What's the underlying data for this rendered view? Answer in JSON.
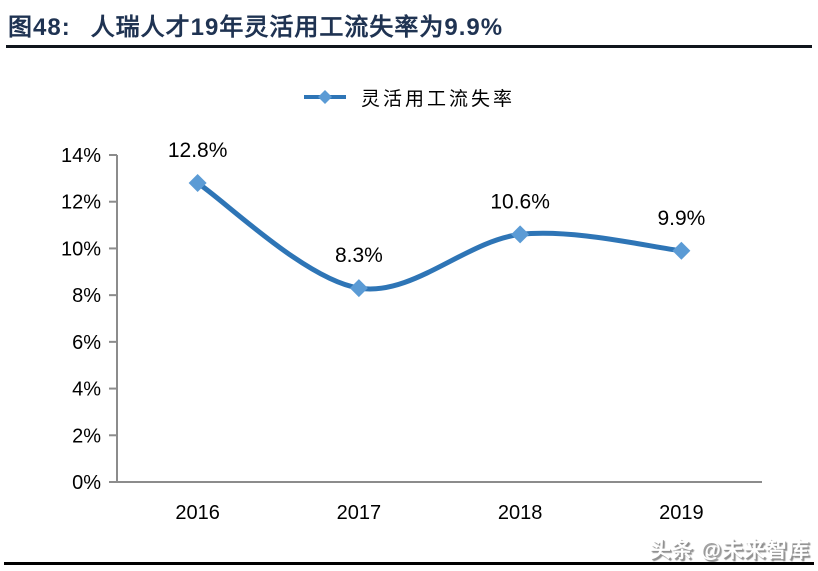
{
  "title": {
    "figure_label": "图48:",
    "text": "人瑞人才19年灵活用工流失率为9.9%"
  },
  "legend": {
    "label": "灵活用工流失率"
  },
  "watermark": {
    "text": "头条 @未来智库"
  },
  "colors": {
    "title": "#1F3352",
    "title_rule": "#10151c",
    "line": "#2E75B6",
    "marker": "#5B9BD5",
    "axis": "#8C8C8C",
    "text": "#000000"
  },
  "chart_data": {
    "type": "line",
    "title": "人瑞人才19年灵活用工流失率为9.9%",
    "categories": [
      "2016",
      "2017",
      "2018",
      "2019"
    ],
    "series": [
      {
        "name": "灵活用工流失率",
        "values": [
          12.8,
          8.3,
          10.6,
          9.9
        ]
      }
    ],
    "data_labels": [
      "12.8%",
      "8.3%",
      "10.6%",
      "9.9%"
    ],
    "xlabel": "",
    "ylabel": "",
    "ylim": [
      0,
      14
    ],
    "ytick_step": 2,
    "ytick_labels": [
      "0%",
      "2%",
      "4%",
      "6%",
      "8%",
      "10%",
      "12%",
      "14%"
    ],
    "grid": false,
    "legend_position": "top",
    "line_smooth": true,
    "marker_shape": "diamond"
  }
}
